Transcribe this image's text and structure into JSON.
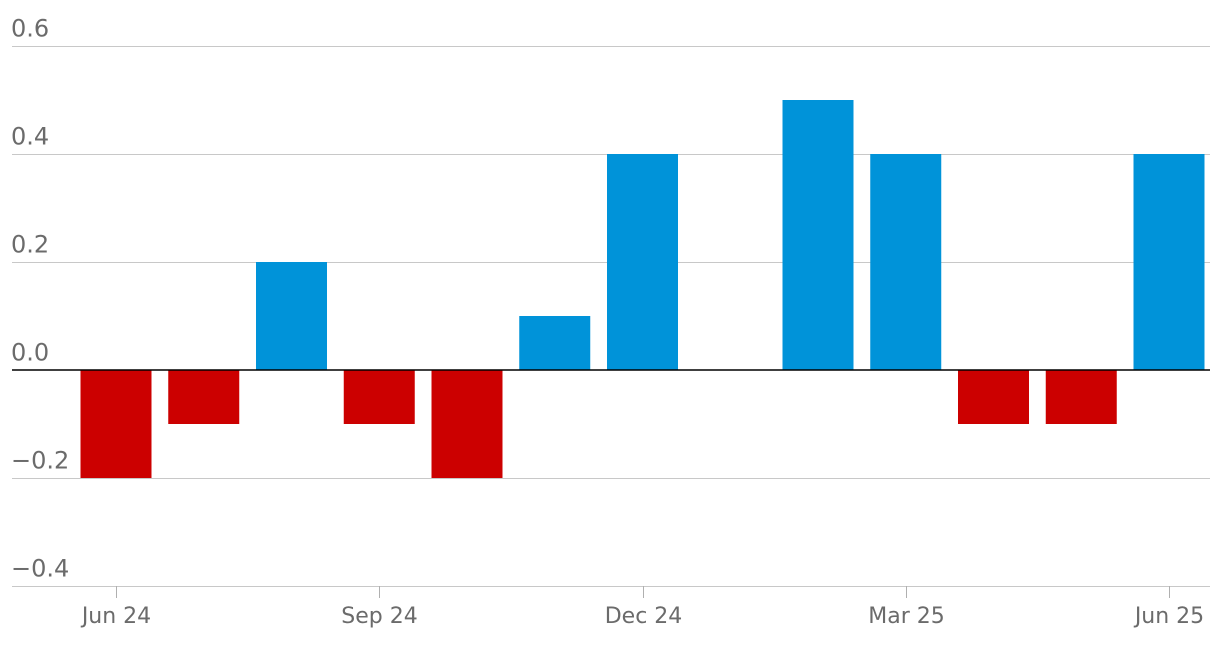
{
  "chart_data": {
    "type": "bar",
    "categories": [
      "2024-06",
      "2024-07",
      "2024-08",
      "2024-09",
      "2024-10",
      "2024-11",
      "2024-12",
      "2025-01",
      "2025-02",
      "2025-03",
      "2025-04",
      "2025-05",
      "2025-06"
    ],
    "values": [
      -0.2,
      -0.1,
      0.2,
      -0.1,
      -0.2,
      0.1,
      0.4,
      0.0,
      0.5,
      0.4,
      -0.1,
      -0.1,
      0.4
    ],
    "ylim": [
      -0.4,
      0.6
    ],
    "yticks": [
      {
        "value": 0.6,
        "label": "0.6"
      },
      {
        "value": 0.4,
        "label": "0.4"
      },
      {
        "value": 0.2,
        "label": "0.2"
      },
      {
        "value": 0.0,
        "label": "0.0"
      },
      {
        "value": -0.2,
        "label": "−0.2"
      },
      {
        "value": -0.4,
        "label": "−0.4"
      }
    ],
    "xticks": [
      {
        "category": "2024-06",
        "label": "Jun 24"
      },
      {
        "category": "2024-09",
        "label": "Sep 24"
      },
      {
        "category": "2024-12",
        "label": "Dec 24"
      },
      {
        "category": "2025-03",
        "label": "Mar 25"
      },
      {
        "category": "2025-06",
        "label": "Jun 25"
      }
    ],
    "grid": true,
    "colors": {
      "positive": "#0093d9",
      "negative": "#cc0000"
    }
  }
}
